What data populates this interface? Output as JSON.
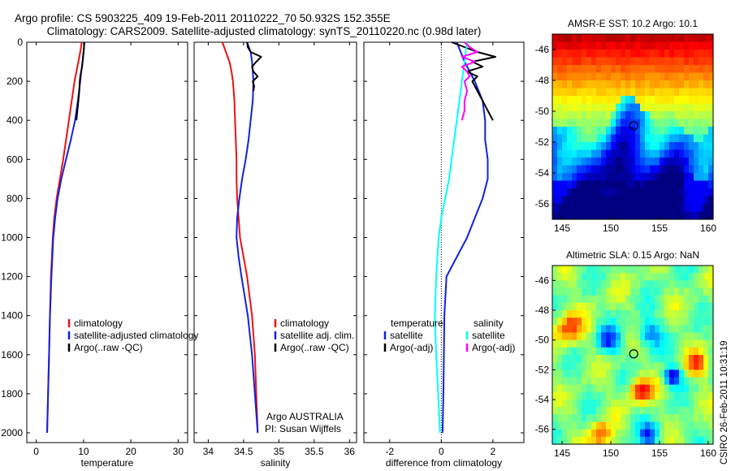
{
  "header": {
    "title_line1": "Argo profile: CS 5903225_409 19-Feb-2011 20110222_70 50.932S 152.355E",
    "title_line2": "Climatology: CARS2009. Satellite-adjusted climatology: synTS_20110220.nc (0.98d later)"
  },
  "colors": {
    "climatology": "#ee1111",
    "satellite": "#1122dd",
    "argo": "#000000",
    "sat_diff_temp": "#00ffff",
    "argo_diff_sal": "#ff00ff"
  },
  "chart_data": [
    {
      "id": "temperature",
      "type": "line",
      "xlabel": "temperature",
      "ylabel": "",
      "xlim": [
        -2,
        32
      ],
      "ylim": [
        2050,
        0
      ],
      "x_ticks": [
        0,
        10,
        20,
        30
      ],
      "y_ticks": [
        0,
        200,
        400,
        600,
        800,
        1000,
        1200,
        1400,
        1600,
        1800,
        2000
      ],
      "y_reversed": true,
      "legend": [
        "climatology",
        "satellite-adjusted climatology",
        "Argo(..raw -QC)"
      ],
      "series": [
        {
          "name": "climatology",
          "color": "#ee1111",
          "depth": [
            0,
            50,
            100,
            150,
            200,
            300,
            400,
            500,
            600,
            700,
            800,
            900,
            1000,
            1200,
            1400,
            1600,
            1800,
            2000
          ],
          "values": [
            9.6,
            9.3,
            8.9,
            8.5,
            8.1,
            7.5,
            6.9,
            6.3,
            5.7,
            5.0,
            4.3,
            3.8,
            3.5,
            3.1,
            2.9,
            2.7,
            2.5,
            2.3
          ]
        },
        {
          "name": "satellite-adjusted climatology",
          "color": "#1122dd",
          "depth": [
            0,
            50,
            100,
            150,
            200,
            300,
            400,
            500,
            600,
            700,
            800,
            900,
            1000,
            1200,
            1400,
            1600,
            1800,
            2000
          ],
          "values": [
            10.2,
            10.0,
            9.8,
            9.5,
            9.3,
            8.8,
            8.2,
            7.3,
            6.3,
            5.3,
            4.5,
            4.0,
            3.6,
            3.2,
            2.9,
            2.7,
            2.5,
            2.3
          ]
        },
        {
          "name": "Argo(..raw -QC)",
          "color": "#000000",
          "depth": [
            0,
            25,
            50,
            75,
            100,
            125,
            150,
            175,
            200,
            250,
            300,
            350,
            400
          ],
          "values": [
            10.1,
            10.1,
            10.0,
            9.9,
            9.8,
            9.7,
            9.5,
            9.3,
            9.2,
            9.1,
            8.9,
            8.7,
            8.5
          ]
        }
      ]
    },
    {
      "id": "salinity",
      "type": "line",
      "xlabel": "salinity",
      "ylabel": "",
      "xlim": [
        33.8,
        36.1
      ],
      "ylim": [
        2050,
        0
      ],
      "x_ticks": [
        34,
        34.5,
        35,
        35.5,
        36
      ],
      "legend": [
        "climatology",
        "satellite adj. clim.",
        "Argo(..raw -QC)"
      ],
      "annotation": [
        "Argo AUSTRALIA",
        "PI: Susan Wijffels"
      ],
      "series": [
        {
          "name": "climatology",
          "color": "#ee1111",
          "depth": [
            0,
            50,
            100,
            150,
            200,
            300,
            400,
            500,
            600,
            700,
            800,
            900,
            1000,
            1100,
            1200,
            1400,
            1600,
            1800,
            2000
          ],
          "values": [
            34.2,
            34.25,
            34.3,
            34.33,
            34.35,
            34.37,
            34.38,
            34.39,
            34.4,
            34.4,
            34.41,
            34.43,
            34.45,
            34.5,
            34.55,
            34.62,
            34.66,
            34.68,
            34.7
          ]
        },
        {
          "name": "satellite adj. clim.",
          "color": "#1122dd",
          "depth": [
            0,
            50,
            100,
            150,
            200,
            300,
            400,
            500,
            600,
            700,
            800,
            900,
            1000,
            1100,
            1200,
            1400,
            1600,
            1800,
            2000
          ],
          "values": [
            34.55,
            34.6,
            34.62,
            34.63,
            34.64,
            34.63,
            34.6,
            34.57,
            34.53,
            34.48,
            34.44,
            34.41,
            34.4,
            34.43,
            34.47,
            34.56,
            34.62,
            34.66,
            34.7
          ]
        },
        {
          "name": "Argo(..raw -QC)",
          "color": "#000000",
          "depth": [
            0,
            25,
            50,
            75,
            100,
            125,
            150,
            175,
            200,
            225,
            250
          ],
          "values": [
            34.55,
            34.56,
            34.6,
            34.75,
            34.68,
            34.62,
            34.64,
            34.7,
            34.63,
            34.65,
            34.64
          ]
        }
      ]
    },
    {
      "id": "difference",
      "type": "line",
      "xlabel": "difference from climatology",
      "ylabel": "",
      "xlim": [
        -3,
        3.2
      ],
      "ylim": [
        2050,
        0
      ],
      "x_ticks": [
        -2,
        0,
        2
      ],
      "zero_line": true,
      "legend": [
        "temperature",
        "satellite",
        "Argo(-adj)",
        "salinity",
        "satellite",
        "Argo(-adj)"
      ],
      "series": [
        {
          "name": "temperature satellite",
          "color": "#1122dd",
          "depth": [
            0,
            100,
            200,
            300,
            400,
            500,
            600,
            700,
            800,
            900,
            1000,
            1100,
            1200,
            1400,
            1600,
            1800,
            2000
          ],
          "values": [
            0.6,
            0.9,
            1.3,
            1.6,
            1.7,
            1.7,
            1.8,
            1.8,
            1.6,
            1.3,
            1.0,
            0.6,
            0.2,
            0.12,
            0.1,
            0.08,
            0.05
          ]
        },
        {
          "name": "temperature Argo(-adj)",
          "color": "#000000",
          "depth": [
            0,
            25,
            50,
            75,
            100,
            125,
            150,
            175,
            200,
            250,
            300,
            350,
            400
          ],
          "values": [
            0.4,
            0.9,
            1.4,
            2.1,
            1.2,
            1.6,
            1.0,
            1.4,
            1.2,
            1.4,
            1.6,
            1.8,
            2.0
          ]
        },
        {
          "name": "salinity satellite",
          "color": "#00ffff",
          "depth": [
            0,
            100,
            200,
            300,
            400,
            500,
            600,
            700,
            800,
            900,
            1000,
            1200,
            1400,
            1600,
            1800,
            2000
          ],
          "values": [
            1.0,
            0.9,
            0.8,
            0.7,
            0.6,
            0.5,
            0.4,
            0.3,
            0.15,
            0.0,
            -0.1,
            -0.2,
            -0.25,
            -0.2,
            -0.12,
            -0.05
          ]
        },
        {
          "name": "salinity Argo(-adj)",
          "color": "#ff00ff",
          "depth": [
            0,
            25,
            50,
            75,
            100,
            125,
            150,
            175,
            200,
            250,
            300,
            350,
            400
          ],
          "values": [
            0.9,
            1.1,
            1.4,
            0.8,
            1.3,
            0.8,
            1.0,
            1.1,
            0.9,
            1.0,
            0.9,
            0.9,
            0.8
          ]
        }
      ]
    },
    {
      "id": "sst_map",
      "type": "heatmap",
      "title": "AMSR-E SST: 10.2 Argo: 10.1",
      "xlim": [
        144,
        160.5
      ],
      "ylim": [
        -57,
        -45
      ],
      "x_ticks": [
        145,
        150,
        155,
        160
      ],
      "y_ticks": [
        -46,
        -48,
        -50,
        -52,
        -54,
        -56
      ],
      "marker": {
        "lon": 152.355,
        "lat": -50.932
      }
    },
    {
      "id": "sla_map",
      "type": "heatmap",
      "title": "Altimetric SLA: 0.15 Argo: NaN",
      "xlim": [
        144,
        160.5
      ],
      "ylim": [
        -57,
        -45
      ],
      "x_ticks": [
        145,
        150,
        155,
        160
      ],
      "y_ticks": [
        -46,
        -48,
        -50,
        -52,
        -54,
        -56
      ],
      "marker": {
        "lon": 152.355,
        "lat": -50.932
      }
    }
  ],
  "footer": {
    "timestamp": "CSIRO 26-Feb-2011 10:31:19"
  }
}
